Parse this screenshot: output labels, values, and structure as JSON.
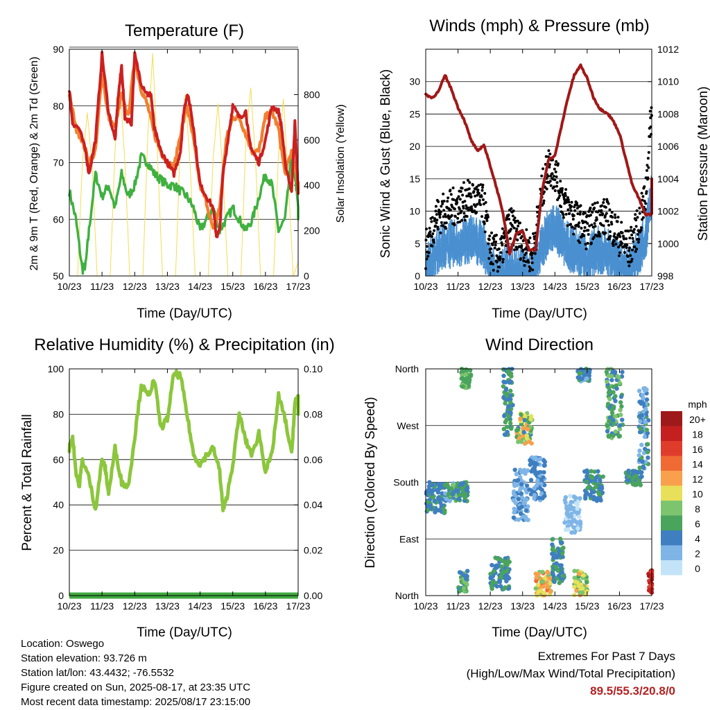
{
  "xticks": [
    "10/23",
    "11/23",
    "12/23",
    "13/23",
    "14/23",
    "15/23",
    "16/23",
    "17/23"
  ],
  "chart_data": [
    {
      "type": "line",
      "title": "Temperature (F)",
      "xlabel": "Time (Day/UTC)",
      "ylabel": "2m & 9m T (Red, Orange) & 2m Td (Green)",
      "ylabel_right": "Solar Insolation (Yellow)",
      "ylim": [
        50,
        90
      ],
      "yticks": [
        50,
        60,
        70,
        80,
        90
      ],
      "ylim_right": [
        0,
        1000
      ],
      "yticks_right": [
        0,
        200,
        400,
        600,
        800
      ],
      "x_days": [
        0,
        7.1
      ],
      "colors": {
        "t2m": "#cc2020",
        "t9m": "#f08030",
        "td2m": "#40b040",
        "solar": "#f5dc50"
      },
      "series": [
        {
          "key": "t2m",
          "x": [
            0,
            0.1,
            0.3,
            0.5,
            0.6,
            0.8,
            1.0,
            1.2,
            1.4,
            1.5,
            1.6,
            1.7,
            1.9,
            2.0,
            2.2,
            2.4,
            2.5,
            2.6,
            2.7,
            2.8,
            3.0,
            3.2,
            3.4,
            3.5,
            3.6,
            3.7,
            3.8,
            4.0,
            4.2,
            4.4,
            4.5,
            4.6,
            4.7,
            4.9,
            5.0,
            5.2,
            5.4,
            5.5,
            5.6,
            5.8,
            6.0,
            6.2,
            6.4,
            6.5,
            6.6,
            6.8,
            6.9,
            7.0,
            7.1
          ],
          "y": [
            83,
            77,
            76,
            72,
            68,
            74,
            89,
            79,
            74,
            82,
            87,
            78,
            77,
            89,
            84,
            82,
            82,
            76,
            74,
            72,
            70,
            68,
            72,
            79,
            82,
            80,
            76,
            66,
            64,
            62,
            57,
            58,
            68,
            76,
            80,
            78,
            79,
            74,
            72,
            70,
            74,
            80,
            79,
            76,
            70,
            65,
            77,
            65,
            65
          ]
        },
        {
          "key": "t9m",
          "x": [
            0,
            0.2,
            0.4,
            0.6,
            0.8,
            1.0,
            1.2,
            1.4,
            1.6,
            1.8,
            2.0,
            2.2,
            2.4,
            2.6,
            2.8,
            3.0,
            3.2,
            3.4,
            3.6,
            3.8,
            4.0,
            4.2,
            4.4,
            4.6,
            4.8,
            5.0,
            5.2,
            5.4,
            5.6,
            5.8,
            6.0,
            6.2,
            6.4,
            6.6,
            6.8,
            7.0,
            7.1
          ],
          "y": [
            82,
            76,
            74,
            70,
            72,
            86,
            78,
            76,
            82,
            78,
            88,
            83,
            80,
            75,
            72,
            70,
            69,
            75,
            80,
            74,
            66,
            63,
            58,
            62,
            74,
            78,
            78,
            75,
            72,
            72,
            78,
            79,
            76,
            68,
            72,
            66,
            66
          ]
        },
        {
          "key": "td2m",
          "x": [
            0,
            0.2,
            0.4,
            0.5,
            0.6,
            0.8,
            1.0,
            1.2,
            1.4,
            1.6,
            1.8,
            2.0,
            2.2,
            2.4,
            2.6,
            2.8,
            3.0,
            3.2,
            3.4,
            3.6,
            3.8,
            4.0,
            4.2,
            4.4,
            4.6,
            4.8,
            5.0,
            5.2,
            5.4,
            5.6,
            5.8,
            6.0,
            6.2,
            6.4,
            6.6,
            6.8,
            6.9,
            7.0,
            7.1
          ],
          "y": [
            65,
            60,
            51,
            52,
            58,
            68,
            64,
            66,
            62,
            68,
            64,
            66,
            71,
            70,
            68,
            67,
            66,
            66,
            65,
            64,
            62,
            58,
            60,
            62,
            58,
            60,
            62,
            60,
            58,
            60,
            64,
            68,
            66,
            58,
            60,
            71,
            68,
            62,
            60
          ]
        },
        {
          "key": "solar",
          "x": [
            0,
            0.25,
            0.4,
            0.55,
            0.7,
            0.85,
            1,
            1.25,
            1.4,
            1.55,
            1.7,
            1.85,
            2,
            2.25,
            2.4,
            2.55,
            2.7,
            2.85,
            3,
            3.25,
            3.4,
            3.55,
            3.7,
            3.85,
            4,
            4.25,
            4.4,
            4.55,
            4.7,
            4.85,
            5,
            5.25,
            5.4,
            5.55,
            5.7,
            5.85,
            6,
            6.25,
            6.4,
            6.55,
            6.7,
            6.85,
            7
          ],
          "y": [
            0,
            0,
            500,
            720,
            480,
            0,
            0,
            0,
            560,
            840,
            500,
            0,
            0,
            0,
            620,
            980,
            520,
            0,
            0,
            0,
            600,
            800,
            480,
            0,
            0,
            0,
            520,
            760,
            450,
            0,
            0,
            0,
            600,
            830,
            500,
            0,
            0,
            0,
            540,
            780,
            420,
            0,
            60
          ]
        }
      ]
    },
    {
      "type": "line",
      "title": "Winds (mph) & Pressure (mb)",
      "xlabel": "Time (Day/UTC)",
      "ylabel": "Sonic Wind & Gust (Blue, Black)",
      "ylabel_right": "Station Pressure (Maroon)",
      "ylim": [
        0,
        35
      ],
      "yticks": [
        0,
        5,
        10,
        15,
        20,
        25,
        30
      ],
      "ylim_right": [
        998,
        1012
      ],
      "yticks_right": [
        998,
        1000,
        1002,
        1004,
        1006,
        1008,
        1010,
        1012
      ],
      "colors": {
        "wind": "#4a90d0",
        "gust": "#000000",
        "pressure": "#a01818"
      },
      "series": [
        {
          "key": "wind",
          "x": [
            0,
            0.3,
            0.6,
            1.0,
            1.4,
            1.8,
            2.0,
            2.3,
            2.6,
            3.0,
            3.3,
            3.6,
            3.8,
            4.0,
            4.3,
            4.6,
            5.0,
            5.3,
            5.6,
            6.0,
            6.3,
            6.6,
            6.8,
            7.0,
            7.1
          ],
          "y": [
            2,
            5,
            6,
            6,
            7,
            6,
            2,
            1,
            3,
            2,
            1,
            6,
            8,
            9,
            6,
            5,
            4,
            5,
            5,
            3,
            2,
            5,
            7,
            14,
            12
          ]
        },
        {
          "key": "gust",
          "x": [
            0,
            0.3,
            0.6,
            1.0,
            1.4,
            1.8,
            2.0,
            2.3,
            2.6,
            3.0,
            3.3,
            3.6,
            3.8,
            4.0,
            4.3,
            4.6,
            5.0,
            5.3,
            5.6,
            6.0,
            6.3,
            6.6,
            6.8,
            7.0,
            7.1
          ],
          "y": [
            4,
            9,
            10,
            11,
            12,
            11,
            4,
            3,
            8,
            5,
            3,
            13,
            17,
            16,
            11,
            9,
            7,
            9,
            9,
            6,
            4,
            8,
            12,
            26,
            20
          ]
        },
        {
          "key": "pressure",
          "x": [
            0,
            0.2,
            0.4,
            0.6,
            0.8,
            1.0,
            1.2,
            1.4,
            1.6,
            1.8,
            2.0,
            2.2,
            2.4,
            2.6,
            2.8,
            3.0,
            3.2,
            3.4,
            3.6,
            3.8,
            4.0,
            4.2,
            4.4,
            4.6,
            4.8,
            5.0,
            5.2,
            5.4,
            5.6,
            5.8,
            6.0,
            6.2,
            6.4,
            6.6,
            6.8,
            7.0,
            7.1
          ],
          "y": [
            1009.2,
            1009.0,
            1009.4,
            1010.4,
            1009.5,
            1008.4,
            1007.6,
            1006.4,
            1005.7,
            1006.1,
            1004.8,
            1003.4,
            1001.8,
            999.4,
            1000.6,
            1000.8,
            999.6,
            999.6,
            1003.2,
            1005.2,
            1005.4,
            1007.2,
            1009.0,
            1010.4,
            1011.0,
            1010.2,
            1009.0,
            1008.3,
            1008.1,
            1007.6,
            1006.8,
            1005.2,
            1003.6,
            1002.8,
            1001.8,
            1001.8,
            1004.0
          ]
        }
      ]
    },
    {
      "type": "line",
      "title": "Relative Humidity (%) & Precipitation (in)",
      "xlabel": "Time (Day/UTC)",
      "ylabel": "Percent & Total Rainfall",
      "ylim": [
        0,
        100
      ],
      "yticks": [
        0,
        20,
        40,
        60,
        80,
        100
      ],
      "ylim_right": [
        0,
        0.1
      ],
      "yticks_right": [
        "0.00",
        "0.02",
        "0.04",
        "0.06",
        "0.08",
        "0.10"
      ],
      "colors": {
        "rh": "#8cc63c",
        "precip": "#40a840"
      },
      "series": [
        {
          "key": "rh",
          "x": [
            0,
            0.1,
            0.2,
            0.3,
            0.4,
            0.6,
            0.8,
            1.0,
            1.1,
            1.2,
            1.4,
            1.6,
            1.8,
            2.0,
            2.2,
            2.4,
            2.6,
            2.8,
            3.0,
            3.2,
            3.4,
            3.6,
            3.8,
            4.0,
            4.2,
            4.4,
            4.6,
            4.7,
            4.8,
            5.0,
            5.2,
            5.4,
            5.6,
            5.8,
            6.0,
            6.2,
            6.4,
            6.6,
            6.8,
            6.9,
            7.0,
            7.1
          ],
          "y": [
            65,
            70,
            55,
            48,
            60,
            52,
            38,
            60,
            56,
            45,
            65,
            50,
            48,
            70,
            93,
            88,
            95,
            74,
            78,
            98,
            97,
            80,
            62,
            58,
            62,
            65,
            55,
            38,
            42,
            58,
            80,
            68,
            62,
            72,
            55,
            62,
            88,
            78,
            62,
            85,
            88,
            80
          ]
        },
        {
          "key": "precip",
          "x": [
            0,
            7.1
          ],
          "y": [
            0,
            0
          ]
        }
      ]
    },
    {
      "type": "scatter",
      "title": "Wind Direction",
      "xlabel": "Time (Day/UTC)",
      "ylabel": "Direction (Colored By Speed)",
      "ytick_labels": [
        "North",
        "East",
        "South",
        "West",
        "North"
      ],
      "ylim": [
        0,
        360
      ],
      "legend": {
        "title": "mph",
        "placement": "right",
        "levels": [
          "20+",
          "18",
          "16",
          "14",
          "12",
          "10",
          "8",
          "6",
          "4",
          "2",
          "0"
        ],
        "colors": [
          "#9e1a1a",
          "#c42020",
          "#e03c2c",
          "#f06a34",
          "#f8a04c",
          "#e8e05a",
          "#7cc46e",
          "#4aa45c",
          "#3f7fc0",
          "#7fb5e6",
          "#c3e4f8"
        ]
      },
      "clusters": [
        {
          "x": [
            0.0,
            0.6
          ],
          "dir": [
            130,
            180
          ],
          "speed": [
            3,
            6
          ]
        },
        {
          "x": [
            0.6,
            1.0
          ],
          "dir": [
            150,
            180
          ],
          "speed": [
            2,
            8
          ]
        },
        {
          "x": [
            1.0,
            1.3
          ],
          "dir": [
            150,
            180
          ],
          "speed": [
            3,
            7
          ]
        },
        {
          "x": [
            1.1,
            1.4
          ],
          "dir": [
            330,
            360
          ],
          "speed": [
            5,
            8
          ]
        },
        {
          "x": [
            1.0,
            1.3
          ],
          "dir": [
            5,
            40
          ],
          "speed": [
            4,
            8
          ]
        },
        {
          "x": [
            2.4,
            2.7
          ],
          "dir": [
            250,
            360
          ],
          "speed": [
            3,
            7
          ]
        },
        {
          "x": [
            2.0,
            2.6
          ],
          "dir": [
            10,
            60
          ],
          "speed": [
            3,
            7
          ]
        },
        {
          "x": [
            2.7,
            3.2
          ],
          "dir": [
            120,
            200
          ],
          "speed": [
            1,
            4
          ]
        },
        {
          "x": [
            2.8,
            3.3
          ],
          "dir": [
            240,
            290
          ],
          "speed": [
            4,
            12
          ]
        },
        {
          "x": [
            3.2,
            3.7
          ],
          "dir": [
            150,
            220
          ],
          "speed": [
            2,
            5
          ]
        },
        {
          "x": [
            3.4,
            3.9
          ],
          "dir": [
            0,
            40
          ],
          "speed": [
            8,
            14
          ]
        },
        {
          "x": [
            3.9,
            4.3
          ],
          "dir": [
            20,
            90
          ],
          "speed": [
            3,
            6
          ]
        },
        {
          "x": [
            4.3,
            4.8
          ],
          "dir": [
            100,
            160
          ],
          "speed": [
            0,
            3
          ]
        },
        {
          "x": [
            4.6,
            5.0
          ],
          "dir": [
            0,
            40
          ],
          "speed": [
            6,
            12
          ]
        },
        {
          "x": [
            4.9,
            5.5
          ],
          "dir": [
            150,
            200
          ],
          "speed": [
            3,
            6
          ]
        },
        {
          "x": [
            4.7,
            5.1
          ],
          "dir": [
            340,
            360
          ],
          "speed": [
            2,
            6
          ]
        },
        {
          "x": [
            5.6,
            6.1
          ],
          "dir": [
            250,
            360
          ],
          "speed": [
            3,
            8
          ]
        },
        {
          "x": [
            6.2,
            6.7
          ],
          "dir": [
            175,
            200
          ],
          "speed": [
            4,
            6
          ]
        },
        {
          "x": [
            6.6,
            6.9
          ],
          "dir": [
            200,
            330
          ],
          "speed": [
            2,
            6
          ]
        },
        {
          "x": [
            6.9,
            7.1
          ],
          "dir": [
            5,
            40
          ],
          "speed": [
            16,
            20
          ]
        }
      ]
    }
  ],
  "info": {
    "location": "Location: Oswego",
    "elevation": "Station elevation: 93.726 m",
    "latlon": "Station lat/lon: 43.4432; -76.5532",
    "created": "Figure created on Sun, 2025-08-17, at 23:35 UTC",
    "recent": "Most recent data timestamp: 2025/08/17 23:15:00"
  },
  "extremes": {
    "line1": "Extremes For Past 7 Days",
    "line2": "(High/Low/Max Wind/Total Precipitation)",
    "values": "89.5/55.3/20.8/0"
  }
}
